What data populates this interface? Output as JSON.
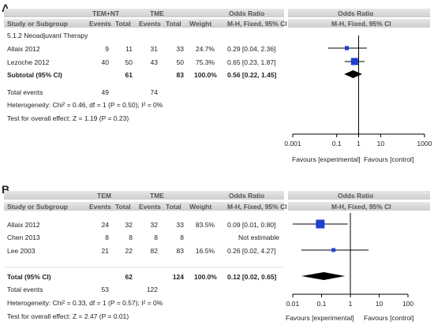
{
  "panels": [
    {
      "label": "A",
      "header": {
        "group1": "TEM+NT",
        "group2": "TME",
        "col_odds_ratio": "Odds Ratio",
        "col_odds_ratio_plot": "Odds Ratio",
        "study_or_subgroup": "Study or Subgroup",
        "events1": "Events",
        "total1": "Total",
        "events2": "Events",
        "total2": "Total",
        "weight": "Weight",
        "method": "M-H, Fixed, 95% CI",
        "method_plot": "M-H, Fixed, 95% CI"
      },
      "subgroup_title": "5.1.2 Neoadjuvant Therapy",
      "studies": [
        {
          "name": "Allaix 2012",
          "events1": "9",
          "total1": "11",
          "events2": "31",
          "total2": "33",
          "weight": "24.7%",
          "or_text": "0.29 [0.04, 2.36]"
        },
        {
          "name": "Lezoche 2012",
          "events1": "40",
          "total1": "50",
          "events2": "43",
          "total2": "50",
          "weight": "75.3%",
          "or_text": "0.65 [0.23, 1.87]"
        }
      ],
      "total": {
        "label": "Subtotal (95% CI)",
        "total1": "61",
        "total2": "83",
        "weight": "100.0%",
        "or_text": "0.56 [0.22, 1.45]"
      },
      "total_events": {
        "label": "Total events",
        "events1": "49",
        "events2": "74"
      },
      "heterogeneity": "Heterogeneity: Chi² = 0.46, df = 1 (P = 0.50); I² = 0%",
      "overall_effect": "Test for overall effect: Z = 1.19 (P = 0.23)",
      "axis_ticks": [
        "0.001",
        "0.1",
        "1",
        "10",
        "1000"
      ],
      "favours_left": "Favours [experimental]",
      "favours_right": "Favours [control]"
    },
    {
      "label": "B",
      "header": {
        "group1": "TEM",
        "group2": "TME",
        "col_odds_ratio": "Odds Ratio",
        "col_odds_ratio_plot": "Odds Ratio",
        "study_or_subgroup": "Study or Subgroup",
        "events1": "Events",
        "total1": "Total",
        "events2": "Events",
        "total2": "Total",
        "weight": "Weight",
        "method": "M-H, Fixed, 95% CI",
        "method_plot": "M-H, Fixed, 95% CI"
      },
      "studies": [
        {
          "name": "Allaix 2012",
          "events1": "24",
          "total1": "32",
          "events2": "32",
          "total2": "33",
          "weight": "83.5%",
          "or_text": "0.09 [0.01, 0.80]"
        },
        {
          "name": "Chen 2013",
          "events1": "8",
          "total1": "8",
          "events2": "8",
          "total2": "8",
          "weight": "",
          "or_text": "Not estimable"
        },
        {
          "name": "Lee 2003",
          "events1": "21",
          "total1": "22",
          "events2": "82",
          "total2": "83",
          "weight": "16.5%",
          "or_text": "0.26 [0.02, 4.27]"
        }
      ],
      "total": {
        "label": "Total (95% CI)",
        "total1": "62",
        "total2": "124",
        "weight": "100.0%",
        "or_text": "0.12 [0.02, 0.65]"
      },
      "total_events": {
        "label": "Total events",
        "events1": "53",
        "events2": "122"
      },
      "heterogeneity": "Heterogeneity: Chi² = 0.33, df = 1 (P = 0.57); I² = 0%",
      "overall_effect": "Test for overall effect: Z = 2.47 (P = 0.01)",
      "axis_ticks": [
        "0.01",
        "0.1",
        "1",
        "10",
        "100"
      ],
      "favours_left": "Favours [experimental]",
      "favours_right": "Favours [control]"
    }
  ],
  "chart_data": [
    {
      "type": "forest",
      "scale": "log",
      "xlim": [
        0.001,
        1000
      ],
      "ticks": [
        0.001,
        0.1,
        1,
        10,
        1000
      ],
      "studies": [
        {
          "name": "Allaix 2012",
          "or": 0.29,
          "lo": 0.04,
          "hi": 2.36,
          "weight": 24.7
        },
        {
          "name": "Lezoche 2012",
          "or": 0.65,
          "lo": 0.23,
          "hi": 1.87,
          "weight": 75.3
        }
      ],
      "pooled": {
        "or": 0.56,
        "lo": 0.22,
        "hi": 1.45
      },
      "colors": {
        "box": "#1f3fd0",
        "diamond": "#000000"
      }
    },
    {
      "type": "forest",
      "scale": "log",
      "xlim": [
        0.01,
        100
      ],
      "ticks": [
        0.01,
        0.1,
        1,
        10,
        100
      ],
      "studies": [
        {
          "name": "Allaix 2012",
          "or": 0.09,
          "lo": 0.01,
          "hi": 0.8,
          "weight": 83.5
        },
        {
          "name": "Chen 2013",
          "or": null,
          "lo": null,
          "hi": null,
          "weight": null
        },
        {
          "name": "Lee 2003",
          "or": 0.26,
          "lo": 0.02,
          "hi": 4.27,
          "weight": 16.5
        }
      ],
      "pooled": {
        "or": 0.12,
        "lo": 0.02,
        "hi": 0.65
      },
      "colors": {
        "box": "#1f3fd0",
        "diamond": "#000000"
      }
    }
  ]
}
